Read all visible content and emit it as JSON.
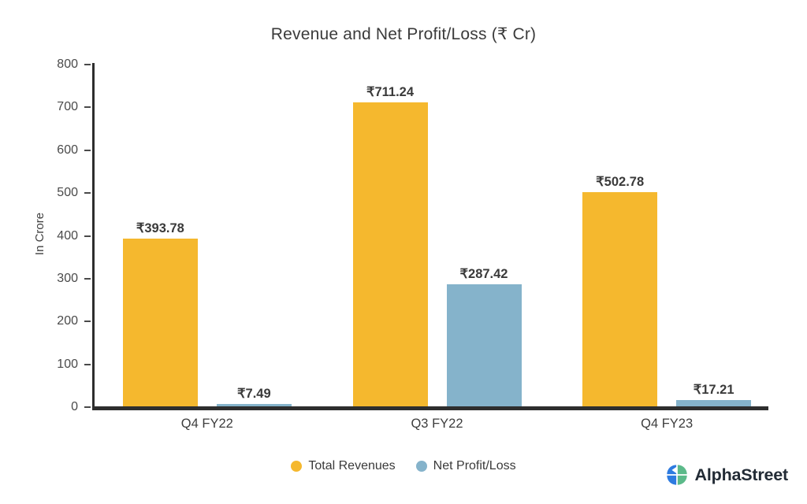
{
  "chart_data": {
    "type": "bar",
    "title": "Revenue and Net Profit/Loss (₹ Cr)",
    "ylabel": "In Crore",
    "xlabel": "",
    "ylim": [
      0,
      800
    ],
    "yticks": [
      0,
      100,
      200,
      300,
      400,
      500,
      600,
      700,
      800
    ],
    "grid": false,
    "legend_position": "bottom",
    "currency_prefix": "₹",
    "categories": [
      "Q4 FY22",
      "Q3 FY22",
      "Q4 FY23"
    ],
    "series": [
      {
        "name": "Total Revenues",
        "color": "#F5B82E",
        "values": [
          393.78,
          711.24,
          502.78
        ],
        "labels": [
          "₹393.78",
          "₹711.24",
          "₹502.78"
        ]
      },
      {
        "name": "Net Profit/Loss",
        "color": "#85B3CB",
        "values": [
          7.49,
          287.42,
          17.21
        ],
        "labels": [
          "₹7.49",
          "₹287.42",
          "₹17.21"
        ]
      }
    ],
    "axis_color": "#2e2e2e",
    "tick_label_color": "#4a4a4a"
  },
  "branding": {
    "name": "AlphaStreet",
    "icon_blue": "#2E7BE0",
    "icon_green": "#5CBA8A"
  }
}
